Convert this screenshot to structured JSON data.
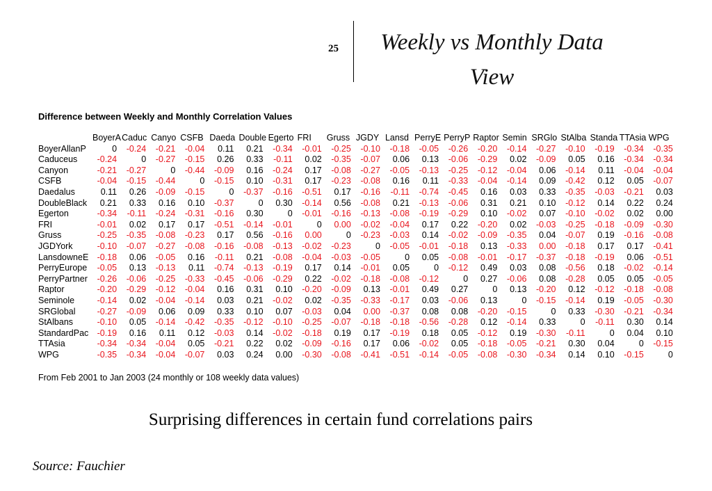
{
  "slide": {
    "number": "25",
    "title": "Weekly vs Monthly Data View",
    "subtitle": "Surprising differences in certain fund correlations pairs",
    "source": "Source: Fauchier"
  },
  "table": {
    "heading": "Difference between Weekly and Monthly Correlation Values",
    "footnote": "From Feb 2001 to Jan 2003 (24 monthly or 108 weekly data values)",
    "colors": {
      "negative": "#e8141c",
      "positive": "#000000"
    },
    "columns": [
      "BoyerA",
      "Caduc",
      "Canyo",
      "CSFB",
      "Daeda",
      "Double",
      "Egerto",
      "FRI",
      "Gruss",
      "JGDY",
      "Lansd",
      "PerryE",
      "PerryP",
      "Raptor",
      "Semin",
      "SRGlo",
      "StAlba",
      "Standa",
      "TTAsia",
      "WPG"
    ],
    "rows": [
      {
        "label": "BoyerAllanP",
        "values": [
          "0",
          "-0.24",
          "-0.21",
          "-0.04",
          "0.11",
          "0.21",
          "-0.34",
          "-0.01",
          "-0.25",
          "-0.10",
          "-0.18",
          "-0.05",
          "-0.26",
          "-0.20",
          "-0.14",
          "-0.27",
          "-0.10",
          "-0.19",
          "-0.34",
          "-0.35"
        ]
      },
      {
        "label": "Caduceus",
        "values": [
          "-0.24",
          "0",
          "-0.27",
          "-0.15",
          "0.26",
          "0.33",
          "-0.11",
          "0.02",
          "-0.35",
          "-0.07",
          "0.06",
          "0.13",
          "-0.06",
          "-0.29",
          "0.02",
          "-0.09",
          "0.05",
          "0.16",
          "-0.34",
          "-0.34"
        ]
      },
      {
        "label": "Canyon",
        "values": [
          "-0.21",
          "-0.27",
          "0",
          "-0.44",
          "-0.09",
          "0.16",
          "-0.24",
          "0.17",
          "-0.08",
          "-0.27",
          "-0.05",
          "-0.13",
          "-0.25",
          "-0.12",
          "-0.04",
          "0.06",
          "-0.14",
          "0.11",
          "-0.04",
          "-0.04"
        ]
      },
      {
        "label": "CSFB",
        "values": [
          "-0.04",
          "-0.15",
          "-0.44",
          "0",
          "-0.15",
          "0.10",
          "-0.31",
          "0.17",
          "-0.23",
          "-0.08",
          "0.16",
          "0.11",
          "-0.33",
          "-0.04",
          "-0.14",
          "0.09",
          "-0.42",
          "0.12",
          "0.05",
          "-0.07"
        ]
      },
      {
        "label": "Daedalus",
        "values": [
          "0.11",
          "0.26",
          "-0.09",
          "-0.15",
          "0",
          "-0.37",
          "-0.16",
          "-0.51",
          "0.17",
          "-0.16",
          "-0.11",
          "-0.74",
          "-0.45",
          "0.16",
          "0.03",
          "0.33",
          "-0.35",
          "-0.03",
          "-0.21",
          "0.03"
        ]
      },
      {
        "label": "DoubleBlack",
        "values": [
          "0.21",
          "0.33",
          "0.16",
          "0.10",
          "-0.37",
          "0",
          "0.30",
          "-0.14",
          "0.56",
          "-0.08",
          "0.21",
          "-0.13",
          "-0.06",
          "0.31",
          "0.21",
          "0.10",
          "-0.12",
          "0.14",
          "0.22",
          "0.24"
        ]
      },
      {
        "label": "Egerton",
        "values": [
          "-0.34",
          "-0.11",
          "-0.24",
          "-0.31",
          "-0.16",
          "0.30",
          "0",
          "-0.01",
          "-0.16",
          "-0.13",
          "-0.08",
          "-0.19",
          "-0.29",
          "0.10",
          "-0.02",
          "0.07",
          "-0.10",
          "-0.02",
          "0.02",
          "0.00"
        ]
      },
      {
        "label": "FRI",
        "values": [
          "-0.01",
          "0.02",
          "0.17",
          "0.17",
          "-0.51",
          "-0.14",
          "-0.01",
          "0",
          "0.00",
          "-0.02",
          "-0.04",
          "0.17",
          "0.22",
          "-0.20",
          "0.02",
          "-0.03",
          "-0.25",
          "-0.18",
          "-0.09",
          "-0.30"
        ],
        "red_zero_cols": [
          8
        ]
      },
      {
        "label": "Gruss",
        "values": [
          "-0.25",
          "-0.35",
          "-0.08",
          "-0.23",
          "0.17",
          "0.56",
          "-0.16",
          "0.00",
          "0",
          "-0.23",
          "-0.03",
          "0.14",
          "-0.02",
          "-0.09",
          "-0.35",
          "0.04",
          "-0.07",
          "0.19",
          "-0.16",
          "-0.08"
        ],
        "red_zero_cols": [
          7
        ]
      },
      {
        "label": "JGDYork",
        "values": [
          "-0.10",
          "-0.07",
          "-0.27",
          "-0.08",
          "-0.16",
          "-0.08",
          "-0.13",
          "-0.02",
          "-0.23",
          "0",
          "-0.05",
          "-0.01",
          "-0.18",
          "0.13",
          "-0.33",
          "0.00",
          "-0.18",
          "0.17",
          "0.17",
          "-0.41"
        ],
        "red_zero_cols": [
          15
        ]
      },
      {
        "label": "LansdowneE",
        "values": [
          "-0.18",
          "0.06",
          "-0.05",
          "0.16",
          "-0.11",
          "0.21",
          "-0.08",
          "-0.04",
          "-0.03",
          "-0.05",
          "0",
          "0.05",
          "-0.08",
          "-0.01",
          "-0.17",
          "-0.37",
          "-0.18",
          "-0.19",
          "0.06",
          "-0.51"
        ]
      },
      {
        "label": "PerryEurope",
        "values": [
          "-0.05",
          "0.13",
          "-0.13",
          "0.11",
          "-0.74",
          "-0.13",
          "-0.19",
          "0.17",
          "0.14",
          "-0.01",
          "0.05",
          "0",
          "-0.12",
          "0.49",
          "0.03",
          "0.08",
          "-0.56",
          "0.18",
          "-0.02",
          "-0.14"
        ]
      },
      {
        "label": "PerryPartner",
        "values": [
          "-0.26",
          "-0.06",
          "-0.25",
          "-0.33",
          "-0.45",
          "-0.06",
          "-0.29",
          "0.22",
          "-0.02",
          "-0.18",
          "-0.08",
          "-0.12",
          "0",
          "0.27",
          "-0.06",
          "0.08",
          "-0.28",
          "0.05",
          "0.05",
          "-0.05"
        ]
      },
      {
        "label": "Raptor",
        "values": [
          "-0.20",
          "-0.29",
          "-0.12",
          "-0.04",
          "0.16",
          "0.31",
          "0.10",
          "-0.20",
          "-0.09",
          "0.13",
          "-0.01",
          "0.49",
          "0.27",
          "0",
          "0.13",
          "-0.20",
          "0.12",
          "-0.12",
          "-0.18",
          "-0.08"
        ]
      },
      {
        "label": "Seminole",
        "values": [
          "-0.14",
          "0.02",
          "-0.04",
          "-0.14",
          "0.03",
          "0.21",
          "-0.02",
          "0.02",
          "-0.35",
          "-0.33",
          "-0.17",
          "0.03",
          "-0.06",
          "0.13",
          "0",
          "-0.15",
          "-0.14",
          "0.19",
          "-0.05",
          "-0.30"
        ]
      },
      {
        "label": "SRGlobal",
        "values": [
          "-0.27",
          "-0.09",
          "0.06",
          "0.09",
          "0.33",
          "0.10",
          "0.07",
          "-0.03",
          "0.04",
          "0.00",
          "-0.37",
          "0.08",
          "0.08",
          "-0.20",
          "-0.15",
          "0",
          "0.33",
          "-0.30",
          "-0.21",
          "-0.34"
        ],
        "red_zero_cols": [
          9
        ]
      },
      {
        "label": "StAlbans",
        "values": [
          "-0.10",
          "0.05",
          "-0.14",
          "-0.42",
          "-0.35",
          "-0.12",
          "-0.10",
          "-0.25",
          "-0.07",
          "-0.18",
          "-0.18",
          "-0.56",
          "-0.28",
          "0.12",
          "-0.14",
          "0.33",
          "0",
          "-0.11",
          "0.30",
          "0.14"
        ]
      },
      {
        "label": "StandardPac",
        "values": [
          "-0.19",
          "0.16",
          "0.11",
          "0.12",
          "-0.03",
          "0.14",
          "-0.02",
          "-0.18",
          "0.19",
          "0.17",
          "-0.19",
          "0.18",
          "0.05",
          "-0.12",
          "0.19",
          "-0.30",
          "-0.11",
          "0",
          "0.04",
          "0.10"
        ]
      },
      {
        "label": "TTAsia",
        "values": [
          "-0.34",
          "-0.34",
          "-0.04",
          "0.05",
          "-0.21",
          "0.22",
          "0.02",
          "-0.09",
          "-0.16",
          "0.17",
          "0.06",
          "-0.02",
          "0.05",
          "-0.18",
          "-0.05",
          "-0.21",
          "0.30",
          "0.04",
          "0",
          "-0.15"
        ]
      },
      {
        "label": "WPG",
        "values": [
          "-0.35",
          "-0.34",
          "-0.04",
          "-0.07",
          "0.03",
          "0.24",
          "0.00",
          "-0.30",
          "-0.08",
          "-0.41",
          "-0.51",
          "-0.14",
          "-0.05",
          "-0.08",
          "-0.30",
          "-0.34",
          "0.14",
          "0.10",
          "-0.15",
          "0"
        ]
      }
    ]
  }
}
